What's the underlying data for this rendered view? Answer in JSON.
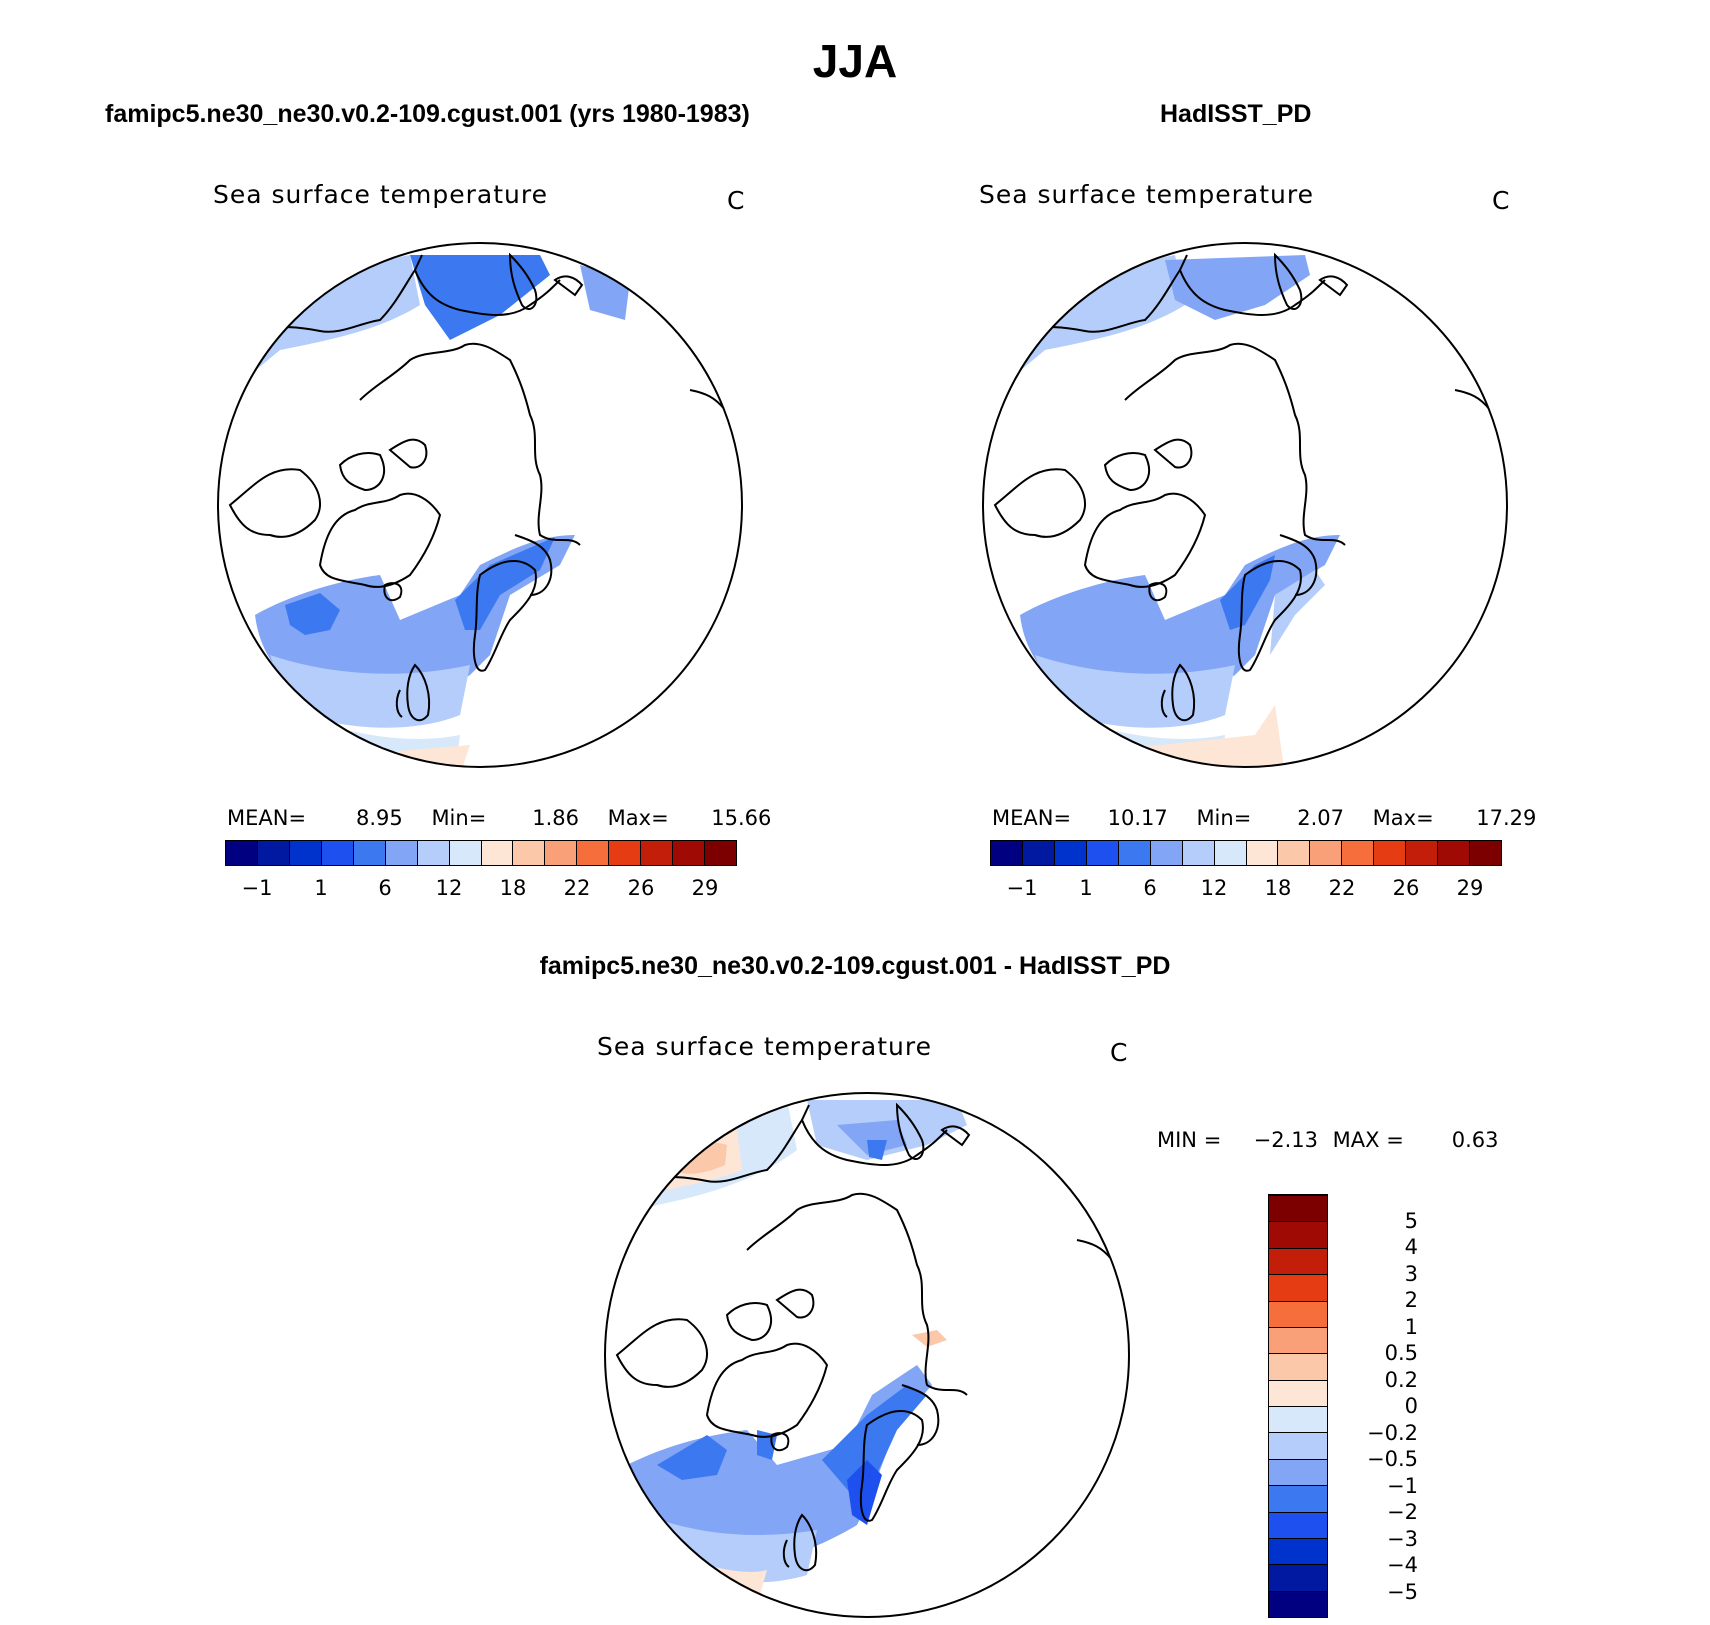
{
  "figure": {
    "title": "JJA",
    "diff_title": "famipc5.ne30_ne30.v0.2-109.cgust.001 - HadISST_PD"
  },
  "panels": [
    {
      "id": "model",
      "title": "famipc5.ne30_ne30.v0.2-109.cgust.001 (yrs 1980-1983)",
      "variable": "Sea surface temperature",
      "units": "C",
      "mean_label": "MEAN=",
      "mean": "8.95",
      "min_label": "Min=",
      "min": "1.86",
      "max_label": "Max=",
      "max": "15.66"
    },
    {
      "id": "obs",
      "title": "HadISST_PD",
      "variable": "Sea surface temperature",
      "units": "C",
      "mean_label": "MEAN=",
      "mean": "10.17",
      "min_label": "Min=",
      "min": "2.07",
      "max_label": "Max=",
      "max": "17.29"
    }
  ],
  "diff_panel": {
    "variable": "Sea surface temperature",
    "units": "C",
    "min_label": "MIN =",
    "min": "−2.13",
    "max_label": "MAX =",
    "max": "0.63"
  },
  "colorbar_main": {
    "colors": [
      "#000080",
      "#0019A0",
      "#0033CC",
      "#1E50F0",
      "#3C78F0",
      "#82A5F5",
      "#B4CDFA",
      "#D7E8FA",
      "#FDE6D5",
      "#FCC8AA",
      "#FAA078",
      "#F56E3C",
      "#E63C14",
      "#C31E0A",
      "#A00A05",
      "#7D0000"
    ],
    "ticks": [
      "−1",
      "1",
      "6",
      "12",
      "18",
      "22",
      "26",
      "29"
    ]
  },
  "colorbar_diff": {
    "colors": [
      "#000080",
      "#0019A0",
      "#0033CC",
      "#1E50F0",
      "#3C78F0",
      "#82A5F5",
      "#B4CDFA",
      "#D7E8FA",
      "#FDE6D5",
      "#FCC8AA",
      "#FAA078",
      "#F56E3C",
      "#E63C14",
      "#C31E0A",
      "#A00A05",
      "#7D0000"
    ],
    "ticks": [
      "−5",
      "−4",
      "−3",
      "−2",
      "−1",
      "−0.5",
      "−0.2",
      "0",
      "0.2",
      "0.5",
      "1",
      "2",
      "3",
      "4",
      "5"
    ]
  }
}
